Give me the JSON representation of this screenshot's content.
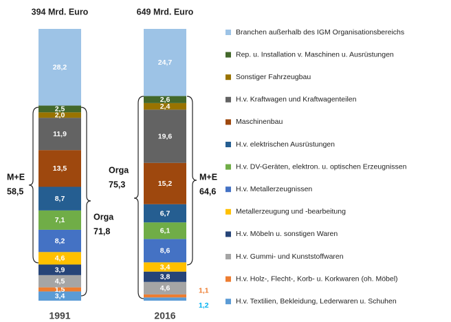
{
  "chart_data": {
    "type": "stacked_bar",
    "categories": [
      "1991",
      "2016"
    ],
    "totals": [
      "394 Mrd. Euro",
      "649 Mrd. Euro"
    ],
    "annotations": [
      [
        "M+E",
        "58,5"
      ],
      [
        "Orga",
        "71,8"
      ],
      [
        "Orga",
        "75,3"
      ],
      [
        "M+E",
        "64,6"
      ]
    ],
    "series": [
      {
        "name": "H.v. Textilien, Bekleidung, Lederwaren u. Schuhen",
        "color": "#5b9bd5",
        "values": [
          3.4,
          1.2
        ],
        "value_labels": [
          "3,4",
          "1,2"
        ]
      },
      {
        "name": "H.v. Holz-, Flecht-, Korb- u. Korkwaren (oh. Möbel)",
        "color": "#ed7d31",
        "values": [
          1.5,
          1.1
        ],
        "value_labels": [
          "1,5",
          "1,1"
        ]
      },
      {
        "name": "H.v. Gummi- und Kunststoffwaren",
        "color": "#a5a5a5",
        "values": [
          4.5,
          4.6
        ],
        "value_labels": [
          "4,5",
          "4,6"
        ]
      },
      {
        "name": "H.v. Möbeln u. sonstigen Waren",
        "color": "#264478",
        "values": [
          3.9,
          3.8
        ],
        "value_labels": [
          "3,9",
          "3,8"
        ]
      },
      {
        "name": "Metallerzeugung und -bearbeitung",
        "color": "#ffc000",
        "values": [
          4.6,
          3.4
        ],
        "value_labels": [
          "4,6",
          "3,4"
        ]
      },
      {
        "name": "H.v. Metallerzeugnissen",
        "color": "#4472c4",
        "values": [
          8.2,
          8.6
        ],
        "value_labels": [
          "8,2",
          "8,6"
        ]
      },
      {
        "name": "H.v. DV-Geräten, elektron. u. optischen Erzeugnissen",
        "color": "#70ad47",
        "values": [
          7.1,
          6.1
        ],
        "value_labels": [
          "7,1",
          "6,1"
        ]
      },
      {
        "name": "H.v. elektrischen Ausrüstungen",
        "color": "#255e91",
        "values": [
          8.7,
          6.7
        ],
        "value_labels": [
          "8,7",
          "6,7"
        ]
      },
      {
        "name": "Maschinenbau",
        "color": "#9e480e",
        "values": [
          13.5,
          15.2
        ],
        "value_labels": [
          "13,5",
          "15,2"
        ]
      },
      {
        "name": "H.v. Kraftwagen und Kraftwagenteilen",
        "color": "#636363",
        "values": [
          11.9,
          19.6
        ],
        "value_labels": [
          "11,9",
          "19,6"
        ]
      },
      {
        "name": "Sonstiger Fahrzeugbau",
        "color": "#997300",
        "values": [
          2.0,
          2.4
        ],
        "value_labels": [
          "2,0",
          "2,4"
        ]
      },
      {
        "name": "Rep. u. Installation v. Maschinen u. Ausrüstungen",
        "color": "#43682b",
        "values": [
          2.5,
          2.6
        ],
        "value_labels": [
          "2,5",
          "2,6"
        ]
      },
      {
        "name": "Branchen außerhalb des IGM Organisationsbereichs",
        "color": "#9dc3e6",
        "values": [
          28.2,
          24.7
        ],
        "value_labels": [
          "28,2",
          "24,7"
        ]
      }
    ]
  }
}
